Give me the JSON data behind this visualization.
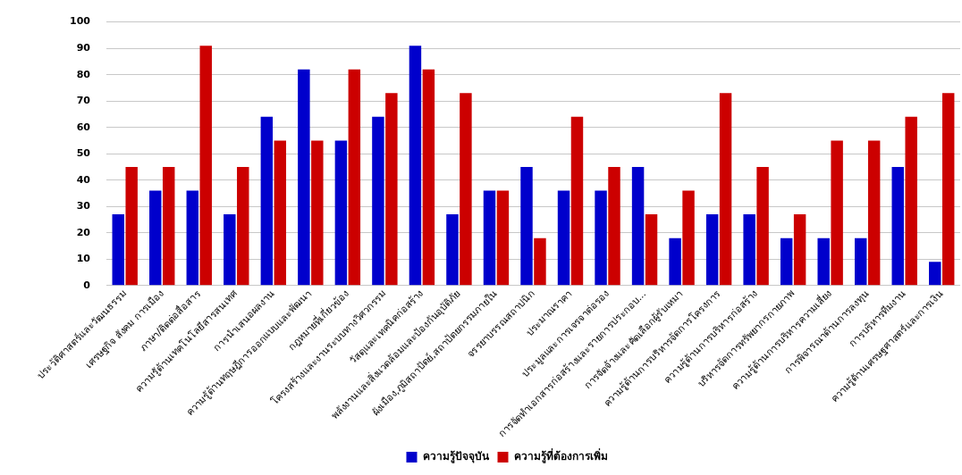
{
  "chart_data": {
    "type": "bar",
    "categories": [
      "ประวัติศาสตร์และวัฒนธรรม",
      "เศรษฐกิจ สังคม การเมือง",
      "ภาษา/ติดต่อสื่อสาร",
      "ความรู้ด้านเทคโนโลยีสารสนเทศ",
      "การนำเสนอผลงาน",
      "ความรู้ด้านทฤษฎีการออกแบบและพัฒนา",
      "กฎหมายที่เกี่ยวข้อง",
      "โครงสร้างและงานระบบทางวิศวกรรม",
      "วัสดุและเทคนิคก่อสร้าง",
      "พลังงานและสิ่งแวดล้อมและป้องกันอุบัติภัย",
      "ผังเมือง,ภูมิสถาปัตย์,สถาปัตยกรรมภายใน",
      "จรรยาบรรณสถาปนิก",
      "ประมาณราคา",
      "ประมูลและการเจรจาต่อรอง",
      "การจัดทำเอกสารก่อสร้างและรายการประกอบ...",
      "การจัดจ้างและคัดเลือกผู้รับเหมา",
      "ความรู้ด้านการบริหารจัดการโครงการ",
      "ความรู้ด้านการบริหารก่อสร้าง",
      "บริหารจัดการทรัพยากรกายภาพ",
      "ความรู้ด้านการบริหารความเสี่ยง",
      "การพิจารณาด้านการลงทุน",
      "การบริหารทีมงาน",
      "ความรู้ด้านเศรษฐศาสตร์และการเงิน"
    ],
    "series": [
      {
        "name": "ความรู้ปัจจุบัน",
        "color": "#0000cc",
        "values": [
          27,
          36,
          36,
          27,
          64,
          82,
          55,
          64,
          91,
          27,
          36,
          45,
          36,
          36,
          45,
          18,
          27,
          27,
          18,
          18,
          18,
          45,
          9
        ]
      },
      {
        "name": "ความรู้ที่ต้องการเพิ่ม",
        "color": "#cc0000",
        "values": [
          45,
          45,
          91,
          45,
          55,
          55,
          82,
          73,
          82,
          73,
          36,
          18,
          64,
          45,
          27,
          36,
          73,
          45,
          27,
          55,
          55,
          64,
          73
        ]
      }
    ],
    "ylim": [
      0,
      100
    ],
    "yticks": [
      0,
      10,
      20,
      30,
      40,
      50,
      60,
      70,
      80,
      90,
      100
    ],
    "grid": "y",
    "legend": "bottom"
  }
}
